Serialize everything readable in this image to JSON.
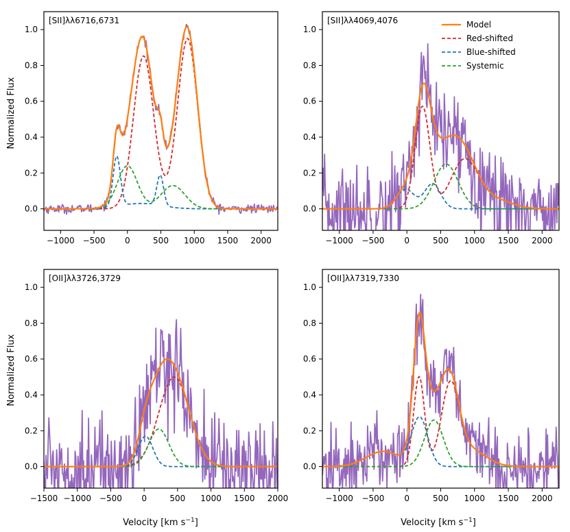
{
  "colors": {
    "data": "#9467bd",
    "model": "#ff7f0e",
    "red": "#d62728",
    "blue": "#1f77b4",
    "systemic": "#2ca02c"
  },
  "figure": {
    "ylabel": "Normalized Flux",
    "xlabel_text": "Velocity [km s",
    "xlabel_sup": "−1",
    "xlabel_close": "]"
  },
  "legend": {
    "entries": [
      "Model",
      "Red-shifted",
      "Blue-shifted",
      "Systemic"
    ]
  },
  "chart_data": [
    {
      "type": "line",
      "title": "[SII]λλ6716,6731",
      "xlim": [
        -1250,
        2250
      ],
      "ylim": [
        -0.12,
        1.1
      ],
      "xticks": [
        -1000,
        -500,
        0,
        500,
        1000,
        1500,
        2000
      ],
      "xtick_labels": [
        "−1000",
        "−500",
        "0",
        "500",
        "1000",
        "1500",
        "2000"
      ],
      "yticks": [
        0.0,
        0.2,
        0.4,
        0.6,
        0.8,
        1.0
      ],
      "ytick_labels": [
        "0.0",
        "0.2",
        "0.4",
        "0.6",
        "0.8",
        "1.0"
      ],
      "noise": 0.012,
      "series": [
        {
          "name": "Red-shifted",
          "components": [
            [
              0.85,
              240,
              150
            ],
            [
              0.95,
              900,
              150
            ],
            [
              0.03,
              500,
              120
            ]
          ]
        },
        {
          "name": "Blue-shifted",
          "components": [
            [
              0.28,
              -160,
              55
            ],
            [
              0.17,
              490,
              50
            ],
            [
              0.03,
              200,
              300
            ]
          ]
        },
        {
          "name": "Systemic",
          "components": [
            [
              0.24,
              0,
              150
            ],
            [
              0.13,
              680,
              180
            ]
          ]
        }
      ]
    },
    {
      "type": "line",
      "title": "[SII]λλ4069,4076",
      "xlim": [
        -1250,
        2250
      ],
      "ylim": [
        -0.12,
        1.1
      ],
      "xticks": [
        -1000,
        -500,
        0,
        500,
        1000,
        1500,
        2000
      ],
      "xtick_labels": [
        "−1000",
        "−500",
        "0",
        "500",
        "1000",
        "1500",
        "2000"
      ],
      "yticks": [
        0.0,
        0.2,
        0.4,
        0.6,
        0.8,
        1.0
      ],
      "ytick_labels": [
        "0.0",
        "0.2",
        "0.4",
        "0.6",
        "0.8",
        "1.0"
      ],
      "noise": 0.13,
      "series": [
        {
          "name": "Red-shifted",
          "components": [
            [
              0.57,
              230,
              110
            ],
            [
              0.27,
              850,
              200
            ],
            [
              0.05,
              1300,
              250
            ]
          ]
        },
        {
          "name": "Blue-shifted",
          "components": [
            [
              0.11,
              -20,
              130
            ],
            [
              0.14,
              380,
              120
            ]
          ]
        },
        {
          "name": "Systemic",
          "components": [
            [
              0.25,
              580,
              180
            ]
          ]
        }
      ]
    },
    {
      "type": "line",
      "title": "[OII]λλ3726,3729",
      "xlim": [
        -1500,
        2000
      ],
      "ylim": [
        -0.12,
        1.1
      ],
      "xticks": [
        -1500,
        -1000,
        -500,
        0,
        500,
        1000,
        1500,
        2000
      ],
      "xtick_labels": [
        "−1500",
        "−1000",
        "−500",
        "0",
        "500",
        "1000",
        "1500",
        "2000"
      ],
      "yticks": [
        0.0,
        0.2,
        0.4,
        0.6,
        0.8,
        1.0
      ],
      "ytick_labels": [
        "0.0",
        "0.2",
        "0.4",
        "0.6",
        "0.8",
        "1.0"
      ],
      "noise": 0.14,
      "series": [
        {
          "name": "Red-shifted",
          "components": [
            [
              0.5,
              450,
              230
            ]
          ]
        },
        {
          "name": "Blue-shifted",
          "components": [
            [
              0.17,
              20,
              110
            ]
          ]
        },
        {
          "name": "Systemic",
          "components": [
            [
              0.21,
              220,
              150
            ]
          ]
        }
      ]
    },
    {
      "type": "line",
      "title": "[OII]λλ7319,7330",
      "xlim": [
        -1250,
        2250
      ],
      "ylim": [
        -0.12,
        1.1
      ],
      "xticks": [
        -1000,
        -500,
        0,
        500,
        1000,
        1500,
        2000
      ],
      "xtick_labels": [
        "−1000",
        "−500",
        "0",
        "500",
        "1000",
        "1500",
        "2000"
      ],
      "yticks": [
        0.0,
        0.2,
        0.4,
        0.6,
        0.8,
        1.0
      ],
      "ytick_labels": [
        "0.0",
        "0.2",
        "0.4",
        "0.6",
        "0.8",
        "1.0"
      ],
      "noise": 0.1,
      "series": [
        {
          "name": "Red-shifted",
          "components": [
            [
              0.5,
              180,
              80
            ],
            [
              0.42,
              640,
              130
            ],
            [
              0.1,
              900,
              250
            ]
          ]
        },
        {
          "name": "Blue-shifted",
          "components": [
            [
              0.27,
              190,
              120
            ],
            [
              0.085,
              -350,
              250
            ]
          ]
        },
        {
          "name": "Systemic",
          "components": [
            [
              0.26,
              400,
              140
            ]
          ]
        }
      ]
    }
  ]
}
